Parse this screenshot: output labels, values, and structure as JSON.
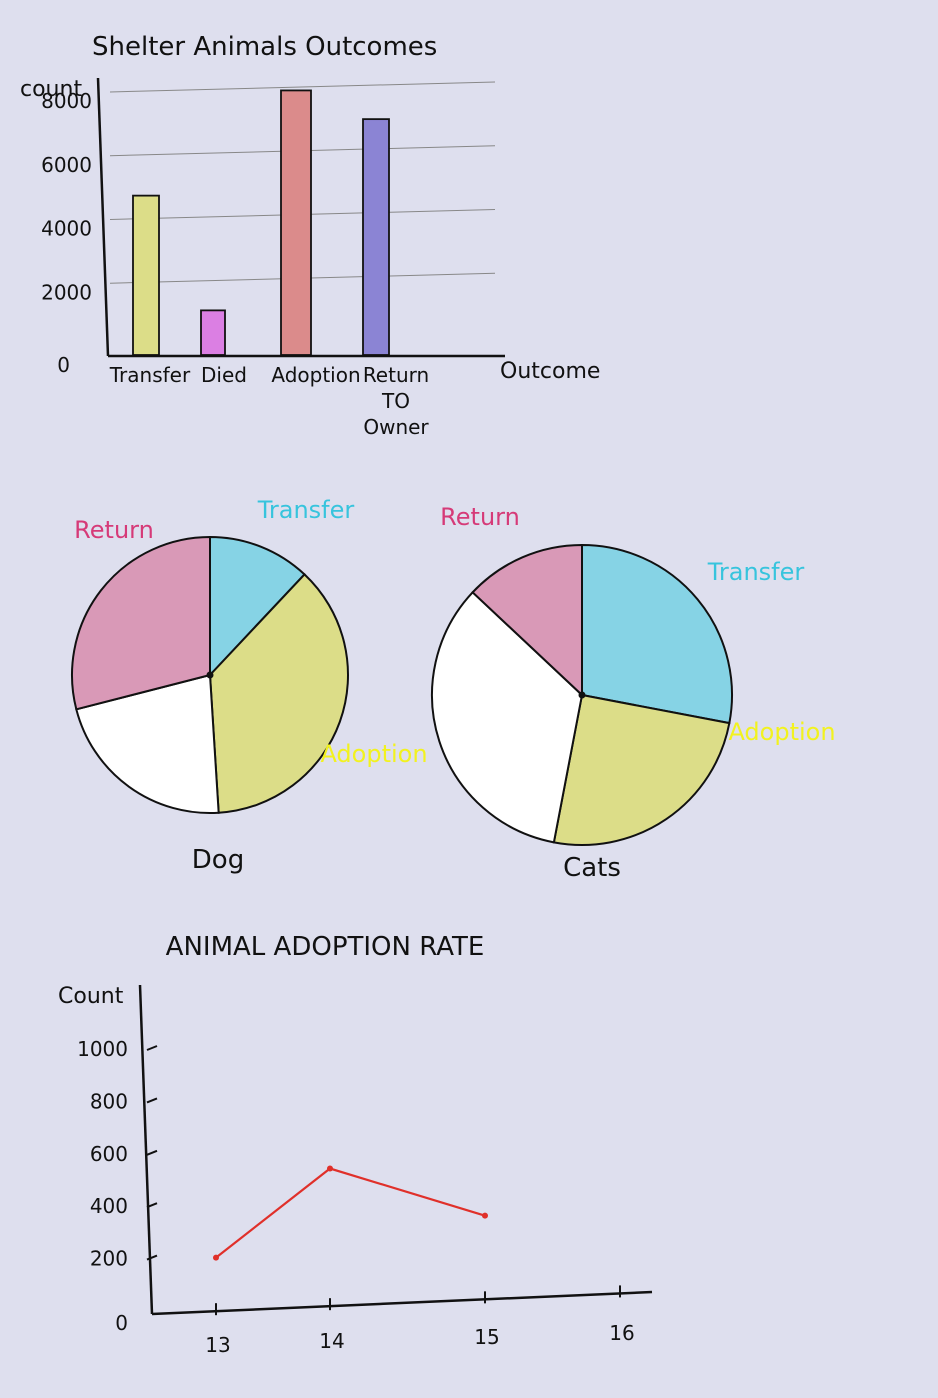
{
  "chart_data": [
    {
      "type": "bar",
      "title": "Shelter Animals Outcomes",
      "xlabel": "Outcome",
      "ylabel": "count",
      "categories": [
        "Transfer",
        "Died",
        "Adoption",
        "Return TO Owner"
      ],
      "values": [
        5000,
        1400,
        8300,
        7400
      ],
      "colors": [
        "#dcdd88",
        "#db7fe3",
        "#db8b8b",
        "#8b84d4"
      ],
      "yticks": [
        "0",
        "2000",
        "4000",
        "6000",
        "8000"
      ],
      "ylim": [
        0,
        8800
      ],
      "grid": true
    },
    {
      "type": "pie",
      "title": "Dog",
      "slices": [
        {
          "label": "Transfer",
          "value": 12,
          "color": "#86d3e5"
        },
        {
          "label": "Adoption",
          "value": 37,
          "color": "#dcdd88"
        },
        {
          "label": "",
          "value": 22,
          "color": "#ffffff"
        },
        {
          "label": "Return",
          "value": 29,
          "color": "#d999b7"
        }
      ],
      "label_colors": {
        "Transfer": "#37c4dd",
        "Adoption": "#f2f21f",
        "Return": "#d63a78"
      }
    },
    {
      "type": "pie",
      "title": "Cats",
      "slices": [
        {
          "label": "Transfer",
          "value": 28,
          "color": "#86d3e5"
        },
        {
          "label": "Adoption",
          "value": 25,
          "color": "#dcdd88"
        },
        {
          "label": "",
          "value": 34,
          "color": "#ffffff"
        },
        {
          "label": "Return",
          "value": 13,
          "color": "#d999b7"
        }
      ],
      "label_colors": {
        "Transfer": "#37c4dd",
        "Adoption": "#f2f21f",
        "Return": "#d63a78"
      }
    },
    {
      "type": "line",
      "title": "ANIMAL ADOPTION RATE",
      "xlabel": "",
      "ylabel": "Count",
      "x": [
        13,
        14,
        15
      ],
      "series": [
        {
          "values": [
            200,
            540,
            360
          ],
          "color": "#e0302a"
        }
      ],
      "xticks": [
        "13",
        "14",
        "15",
        "16"
      ],
      "yticks": [
        "0",
        "200",
        "400",
        "600",
        "800",
        "1000"
      ],
      "ylim": [
        0,
        1050
      ],
      "xlim": [
        12.5,
        16.3
      ]
    }
  ]
}
